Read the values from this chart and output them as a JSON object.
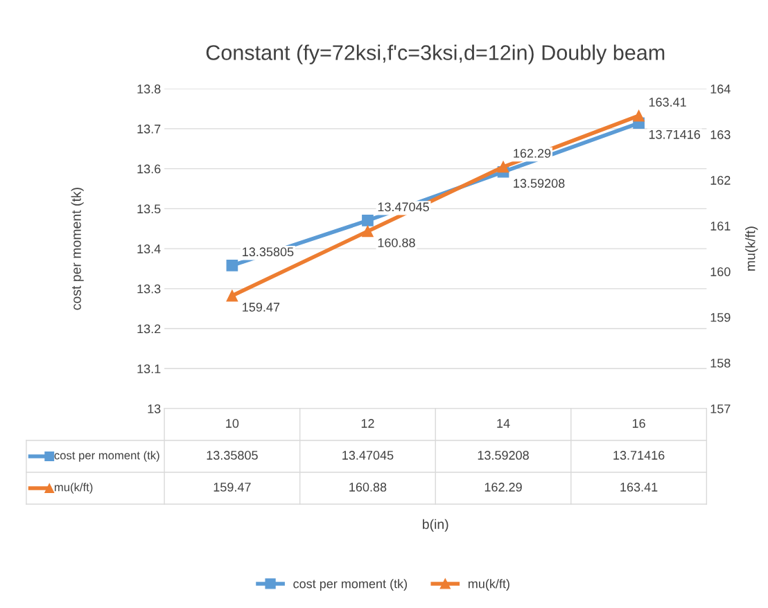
{
  "chart_data": {
    "type": "line",
    "title": "Constant (fy=72ksi,f'c=3ksi,d=12in) Doubly beam",
    "ylabel": "cost per moment (tk)",
    "y2label": "mu(k/ft)",
    "categories": [
      "10",
      "12",
      "14",
      "16"
    ],
    "series": [
      {
        "name": "cost per moment (tk)",
        "color": "#5b9bd5",
        "marker": "square",
        "values": [
          13.35805,
          13.47045,
          13.59208,
          13.71416
        ]
      },
      {
        "name": "mu(k/ft)",
        "color": "#ed7d31",
        "marker": "triangle",
        "axis": "y2",
        "values": [
          159.47,
          160.88,
          162.29,
          163.41
        ]
      }
    ],
    "ylim": [
      13,
      13.8
    ],
    "yticks": [
      {
        "value": 13,
        "label": "13"
      },
      13.1,
      13.2,
      13.3,
      13.4,
      13.5,
      13.6,
      13.7,
      13.8
    ],
    "y2lim": [
      157,
      164
    ],
    "y2ticks": [
      157,
      158,
      159,
      160,
      161,
      162,
      163,
      164
    ],
    "annotations": [
      "13.35805",
      "13.47045",
      "13.59208",
      "13.71416",
      "159.47",
      "160.88",
      "162.29",
      "163.41",
      "b(in)"
    ],
    "grid": "y",
    "legend": "bottom",
    "data_labels": true,
    "line_style": "solid"
  }
}
